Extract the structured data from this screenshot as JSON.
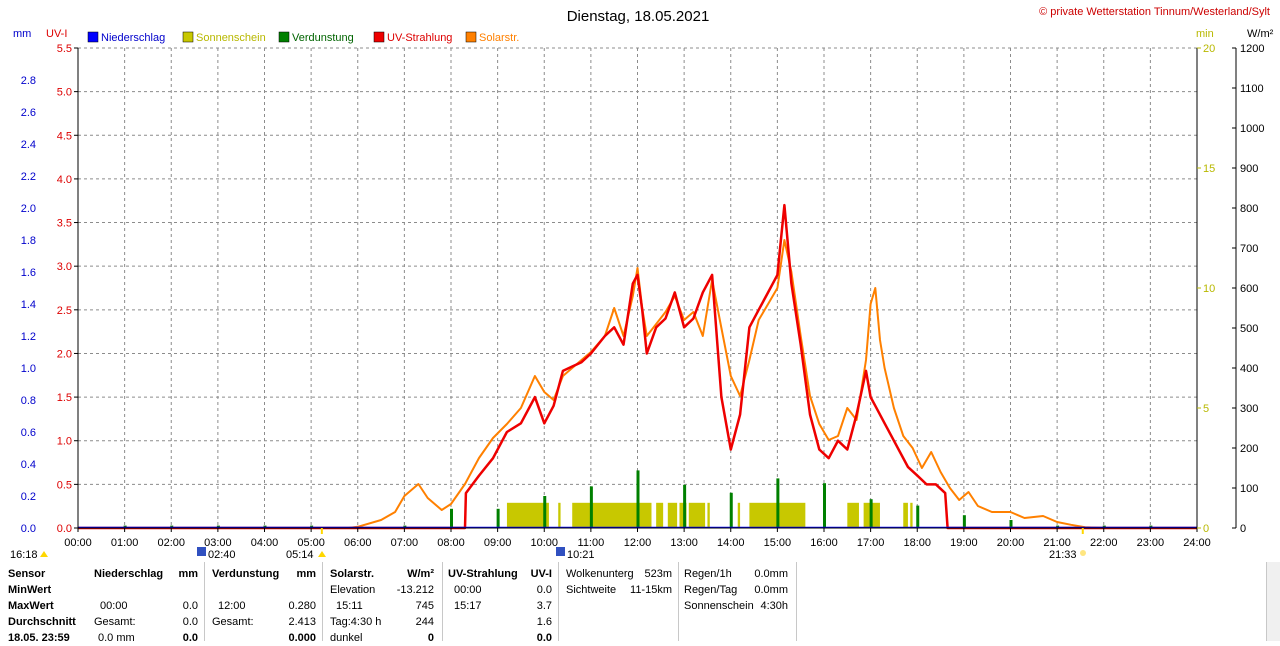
{
  "header": {
    "date_title": "Dienstag, 18.05.2021",
    "copyright": "© private Wetterstation Tinnum/Westerland/Sylt"
  },
  "axes": {
    "mm_unit": "mm",
    "uv_unit": "UV-I",
    "min_unit": "min",
    "wm2_unit": "W/m²",
    "mm_ticks": [
      "0.0",
      "0.2",
      "0.4",
      "0.6",
      "0.8",
      "1.0",
      "1.2",
      "1.4",
      "1.6",
      "1.8",
      "2.0",
      "2.2",
      "2.4",
      "2.6",
      "2.8"
    ],
    "uv_ticks": [
      "0.0",
      "0.5",
      "1.0",
      "1.5",
      "2.0",
      "2.5",
      "3.0",
      "3.5",
      "4.0",
      "4.5",
      "5.0",
      "5.5"
    ],
    "min_ticks": [
      "0",
      "5",
      "10",
      "15",
      "20"
    ],
    "wm2_ticks": [
      "0",
      "100",
      "200",
      "300",
      "400",
      "500",
      "600",
      "700",
      "800",
      "900",
      "1000",
      "1100",
      "1200"
    ],
    "x_ticks": [
      "00:00",
      "01:00",
      "02:00",
      "03:00",
      "04:00",
      "05:00",
      "06:00",
      "07:00",
      "08:00",
      "09:00",
      "10:00",
      "11:00",
      "12:00",
      "13:00",
      "14:00",
      "15:00",
      "16:00",
      "17:00",
      "18:00",
      "19:00",
      "20:00",
      "21:00",
      "22:00",
      "23:00",
      "24:00"
    ]
  },
  "legend": [
    {
      "label": "Niederschlag",
      "color": "#0000ff",
      "text_color": "#0000cc"
    },
    {
      "label": "Sonnenschein",
      "color": "#c8c800",
      "text_color": "#b8b800"
    },
    {
      "label": "Verdunstung",
      "color": "#008000",
      "text_color": "#006400"
    },
    {
      "label": "UV-Strahlung",
      "color": "#ee0000",
      "text_color": "#dd0000"
    },
    {
      "label": "Solarstr.",
      "color": "#ff8000",
      "text_color": "#ff8000"
    }
  ],
  "markers": {
    "uv_marker": "16:18",
    "moonrise": "02:40",
    "sunrise": "05:14",
    "moonset": "10:21",
    "sunset": "21:33"
  },
  "chart_data": {
    "type": "line",
    "x_unit": "hour of day",
    "xlim": [
      0,
      24
    ],
    "ylim_uv": [
      0,
      5.5
    ],
    "ylim_solar_wm2": [
      0,
      1200
    ],
    "ylim_sunshine_min": [
      0,
      20
    ],
    "ylim_mm": [
      0,
      2.8
    ],
    "grid": true,
    "legend_position": "top-left",
    "solar_wm2": [
      [
        0,
        0
      ],
      [
        5.8,
        0
      ],
      [
        6.0,
        3
      ],
      [
        6.5,
        20
      ],
      [
        6.8,
        40
      ],
      [
        7.0,
        80
      ],
      [
        7.3,
        110
      ],
      [
        7.5,
        75
      ],
      [
        7.8,
        45
      ],
      [
        8.0,
        60
      ],
      [
        8.3,
        110
      ],
      [
        8.6,
        175
      ],
      [
        8.9,
        225
      ],
      [
        9.2,
        260
      ],
      [
        9.5,
        300
      ],
      [
        9.8,
        380
      ],
      [
        10.0,
        340
      ],
      [
        10.2,
        320
      ],
      [
        10.4,
        380
      ],
      [
        10.6,
        400
      ],
      [
        10.8,
        420
      ],
      [
        11.0,
        440
      ],
      [
        11.3,
        480
      ],
      [
        11.5,
        550
      ],
      [
        11.7,
        480
      ],
      [
        11.9,
        580
      ],
      [
        12.0,
        650
      ],
      [
        12.1,
        550
      ],
      [
        12.2,
        480
      ],
      [
        12.4,
        510
      ],
      [
        12.6,
        540
      ],
      [
        12.8,
        580
      ],
      [
        13.0,
        520
      ],
      [
        13.2,
        540
      ],
      [
        13.4,
        480
      ],
      [
        13.6,
        620
      ],
      [
        13.8,
        500
      ],
      [
        14.0,
        380
      ],
      [
        14.2,
        330
      ],
      [
        14.4,
        420
      ],
      [
        14.6,
        520
      ],
      [
        14.8,
        560
      ],
      [
        15.0,
        600
      ],
      [
        15.15,
        720
      ],
      [
        15.3,
        640
      ],
      [
        15.5,
        480
      ],
      [
        15.7,
        330
      ],
      [
        15.9,
        260
      ],
      [
        16.1,
        220
      ],
      [
        16.3,
        230
      ],
      [
        16.5,
        300
      ],
      [
        16.7,
        270
      ],
      [
        16.9,
        420
      ],
      [
        17.0,
        560
      ],
      [
        17.1,
        600
      ],
      [
        17.2,
        470
      ],
      [
        17.3,
        400
      ],
      [
        17.5,
        300
      ],
      [
        17.7,
        230
      ],
      [
        17.9,
        200
      ],
      [
        18.1,
        150
      ],
      [
        18.3,
        190
      ],
      [
        18.5,
        140
      ],
      [
        18.7,
        100
      ],
      [
        18.9,
        70
      ],
      [
        19.1,
        90
      ],
      [
        19.3,
        55
      ],
      [
        19.6,
        40
      ],
      [
        20.0,
        40
      ],
      [
        20.3,
        25
      ],
      [
        20.7,
        30
      ],
      [
        21.0,
        15
      ],
      [
        21.3,
        8
      ],
      [
        21.6,
        2
      ],
      [
        22.0,
        0
      ],
      [
        24.0,
        0
      ]
    ],
    "uv_index": [
      [
        0,
        0
      ],
      [
        8.3,
        0
      ],
      [
        8.32,
        0.4
      ],
      [
        8.6,
        0.6
      ],
      [
        8.9,
        0.8
      ],
      [
        9.2,
        1.1
      ],
      [
        9.5,
        1.2
      ],
      [
        9.8,
        1.5
      ],
      [
        10.0,
        1.2
      ],
      [
        10.2,
        1.4
      ],
      [
        10.4,
        1.8
      ],
      [
        10.6,
        1.85
      ],
      [
        10.8,
        1.9
      ],
      [
        11.0,
        2.0
      ],
      [
        11.3,
        2.2
      ],
      [
        11.5,
        2.3
      ],
      [
        11.7,
        2.1
      ],
      [
        11.9,
        2.8
      ],
      [
        12.0,
        2.9
      ],
      [
        12.1,
        2.5
      ],
      [
        12.2,
        2.0
      ],
      [
        12.4,
        2.3
      ],
      [
        12.6,
        2.4
      ],
      [
        12.8,
        2.7
      ],
      [
        13.0,
        2.3
      ],
      [
        13.2,
        2.4
      ],
      [
        13.4,
        2.7
      ],
      [
        13.6,
        2.9
      ],
      [
        13.8,
        1.5
      ],
      [
        14.0,
        0.9
      ],
      [
        14.2,
        1.3
      ],
      [
        14.4,
        2.3
      ],
      [
        14.6,
        2.5
      ],
      [
        14.8,
        2.7
      ],
      [
        15.0,
        2.9
      ],
      [
        15.15,
        3.7
      ],
      [
        15.3,
        2.8
      ],
      [
        15.5,
        2.1
      ],
      [
        15.7,
        1.3
      ],
      [
        15.9,
        0.9
      ],
      [
        16.1,
        0.8
      ],
      [
        16.3,
        1.0
      ],
      [
        16.5,
        0.9
      ],
      [
        16.7,
        1.3
      ],
      [
        16.9,
        1.8
      ],
      [
        17.0,
        1.5
      ],
      [
        17.1,
        1.4
      ],
      [
        17.3,
        1.2
      ],
      [
        17.5,
        1.0
      ],
      [
        17.8,
        0.7
      ],
      [
        18.0,
        0.6
      ],
      [
        18.2,
        0.5
      ],
      [
        18.4,
        0.5
      ],
      [
        18.6,
        0.4
      ],
      [
        18.65,
        0
      ],
      [
        24.0,
        0
      ]
    ],
    "sunshine_periods_h": [
      [
        9.2,
        10.1
      ],
      [
        10.3,
        10.35
      ],
      [
        10.6,
        12.3
      ],
      [
        12.4,
        12.55
      ],
      [
        12.65,
        12.85
      ],
      [
        12.9,
        13.05
      ],
      [
        13.1,
        13.45
      ],
      [
        13.5,
        13.55
      ],
      [
        14.15,
        14.2
      ],
      [
        14.4,
        15.6
      ],
      [
        16.5,
        16.75
      ],
      [
        16.85,
        17.2
      ],
      [
        17.7,
        17.8
      ],
      [
        17.85,
        17.9
      ]
    ],
    "evaporation_spikes_h": [
      1.0,
      2.0,
      3.0,
      4.0,
      5.0,
      7.0,
      8.0,
      9.0,
      10.0,
      11.0,
      12.0,
      13.0,
      14.0,
      15.0,
      16.0,
      17.0,
      18.0,
      19.0,
      20.0,
      21.0,
      22.0,
      23.0
    ]
  },
  "table": {
    "sensor_col": {
      "h_sensor": "Sensor",
      "h_min": "MinWert",
      "h_max": "MaxWert",
      "h_avg": "Durchschnitt",
      "h_date": "18.05. 23:59"
    },
    "precip": {
      "title": "Niederschlag",
      "unit": "mm",
      "max_time": "00:00",
      "max_val": "0.0",
      "total_label": "Gesamt:",
      "total_val": "0.0",
      "cur_val": "0.0 mm",
      "cur_bold": "0.0"
    },
    "evap": {
      "title": "Verdunstung",
      "unit": "mm",
      "max_time": "12:00",
      "max_val": "0.280",
      "total_label": "Gesamt:",
      "total_val": "2.413",
      "cur_bold": "0.000"
    },
    "solar": {
      "title": "Solarstr.",
      "unit": "W/m²",
      "elev_label": "Elevation",
      "elev_val": "-13.212",
      "max_time": "15:11",
      "max_val": "745",
      "day_label": "Tag:4:30 h",
      "day_val": "244",
      "dark_label": "dunkel",
      "dark_val": "0"
    },
    "uv": {
      "title": "UV-Strahlung",
      "unit": "UV-I",
      "min_time": "00:00",
      "min_val": "0.0",
      "max_time": "15:17",
      "max_val": "3.7",
      "avg_val": "1.6",
      "cur_bold": "0.0"
    },
    "sky": {
      "cloud_label": "Wolkenunterg",
      "cloud_val": "523m",
      "vis_label": "Sichtweite",
      "vis_val": "11-15km"
    },
    "rain": {
      "h1_label": "Regen/1h",
      "h1_val": "0.0mm",
      "day_label": "Regen/Tag",
      "day_val": "0.0mm",
      "sun_label": "Sonnenschein",
      "sun_val": "4:30h"
    }
  }
}
